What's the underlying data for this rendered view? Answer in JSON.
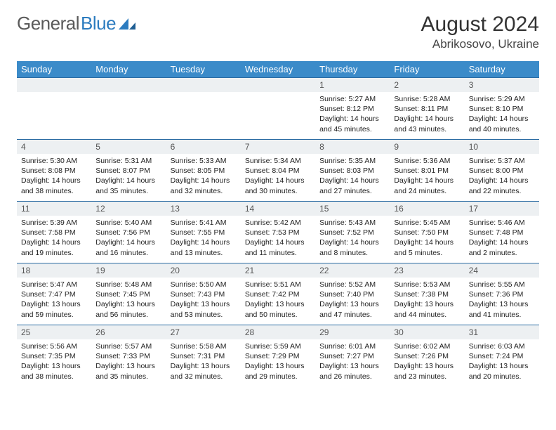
{
  "brand": {
    "part1": "General",
    "part2": "Blue"
  },
  "title": "August 2024",
  "location": "Abrikosovo, Ukraine",
  "colors": {
    "header_bg": "#3b8bc9",
    "header_text": "#ffffff",
    "rule": "#2b6ca3",
    "daynum_bg": "#edf0f2",
    "logo_gray": "#5a5a5a",
    "logo_blue": "#2b7bbf"
  },
  "day_names": [
    "Sunday",
    "Monday",
    "Tuesday",
    "Wednesday",
    "Thursday",
    "Friday",
    "Saturday"
  ],
  "layout": {
    "cols": 7,
    "rows": 5,
    "first_weekday_index": 4
  },
  "days": [
    {
      "n": 1,
      "sunrise": "5:27 AM",
      "sunset": "8:12 PM",
      "daylight": "14 hours and 45 minutes."
    },
    {
      "n": 2,
      "sunrise": "5:28 AM",
      "sunset": "8:11 PM",
      "daylight": "14 hours and 43 minutes."
    },
    {
      "n": 3,
      "sunrise": "5:29 AM",
      "sunset": "8:10 PM",
      "daylight": "14 hours and 40 minutes."
    },
    {
      "n": 4,
      "sunrise": "5:30 AM",
      "sunset": "8:08 PM",
      "daylight": "14 hours and 38 minutes."
    },
    {
      "n": 5,
      "sunrise": "5:31 AM",
      "sunset": "8:07 PM",
      "daylight": "14 hours and 35 minutes."
    },
    {
      "n": 6,
      "sunrise": "5:33 AM",
      "sunset": "8:05 PM",
      "daylight": "14 hours and 32 minutes."
    },
    {
      "n": 7,
      "sunrise": "5:34 AM",
      "sunset": "8:04 PM",
      "daylight": "14 hours and 30 minutes."
    },
    {
      "n": 8,
      "sunrise": "5:35 AM",
      "sunset": "8:03 PM",
      "daylight": "14 hours and 27 minutes."
    },
    {
      "n": 9,
      "sunrise": "5:36 AM",
      "sunset": "8:01 PM",
      "daylight": "14 hours and 24 minutes."
    },
    {
      "n": 10,
      "sunrise": "5:37 AM",
      "sunset": "8:00 PM",
      "daylight": "14 hours and 22 minutes."
    },
    {
      "n": 11,
      "sunrise": "5:39 AM",
      "sunset": "7:58 PM",
      "daylight": "14 hours and 19 minutes."
    },
    {
      "n": 12,
      "sunrise": "5:40 AM",
      "sunset": "7:56 PM",
      "daylight": "14 hours and 16 minutes."
    },
    {
      "n": 13,
      "sunrise": "5:41 AM",
      "sunset": "7:55 PM",
      "daylight": "14 hours and 13 minutes."
    },
    {
      "n": 14,
      "sunrise": "5:42 AM",
      "sunset": "7:53 PM",
      "daylight": "14 hours and 11 minutes."
    },
    {
      "n": 15,
      "sunrise": "5:43 AM",
      "sunset": "7:52 PM",
      "daylight": "14 hours and 8 minutes."
    },
    {
      "n": 16,
      "sunrise": "5:45 AM",
      "sunset": "7:50 PM",
      "daylight": "14 hours and 5 minutes."
    },
    {
      "n": 17,
      "sunrise": "5:46 AM",
      "sunset": "7:48 PM",
      "daylight": "14 hours and 2 minutes."
    },
    {
      "n": 18,
      "sunrise": "5:47 AM",
      "sunset": "7:47 PM",
      "daylight": "13 hours and 59 minutes."
    },
    {
      "n": 19,
      "sunrise": "5:48 AM",
      "sunset": "7:45 PM",
      "daylight": "13 hours and 56 minutes."
    },
    {
      "n": 20,
      "sunrise": "5:50 AM",
      "sunset": "7:43 PM",
      "daylight": "13 hours and 53 minutes."
    },
    {
      "n": 21,
      "sunrise": "5:51 AM",
      "sunset": "7:42 PM",
      "daylight": "13 hours and 50 minutes."
    },
    {
      "n": 22,
      "sunrise": "5:52 AM",
      "sunset": "7:40 PM",
      "daylight": "13 hours and 47 minutes."
    },
    {
      "n": 23,
      "sunrise": "5:53 AM",
      "sunset": "7:38 PM",
      "daylight": "13 hours and 44 minutes."
    },
    {
      "n": 24,
      "sunrise": "5:55 AM",
      "sunset": "7:36 PM",
      "daylight": "13 hours and 41 minutes."
    },
    {
      "n": 25,
      "sunrise": "5:56 AM",
      "sunset": "7:35 PM",
      "daylight": "13 hours and 38 minutes."
    },
    {
      "n": 26,
      "sunrise": "5:57 AM",
      "sunset": "7:33 PM",
      "daylight": "13 hours and 35 minutes."
    },
    {
      "n": 27,
      "sunrise": "5:58 AM",
      "sunset": "7:31 PM",
      "daylight": "13 hours and 32 minutes."
    },
    {
      "n": 28,
      "sunrise": "5:59 AM",
      "sunset": "7:29 PM",
      "daylight": "13 hours and 29 minutes."
    },
    {
      "n": 29,
      "sunrise": "6:01 AM",
      "sunset": "7:27 PM",
      "daylight": "13 hours and 26 minutes."
    },
    {
      "n": 30,
      "sunrise": "6:02 AM",
      "sunset": "7:26 PM",
      "daylight": "13 hours and 23 minutes."
    },
    {
      "n": 31,
      "sunrise": "6:03 AM",
      "sunset": "7:24 PM",
      "daylight": "13 hours and 20 minutes."
    }
  ],
  "labels": {
    "sunrise": "Sunrise:",
    "sunset": "Sunset:",
    "daylight": "Daylight:"
  }
}
